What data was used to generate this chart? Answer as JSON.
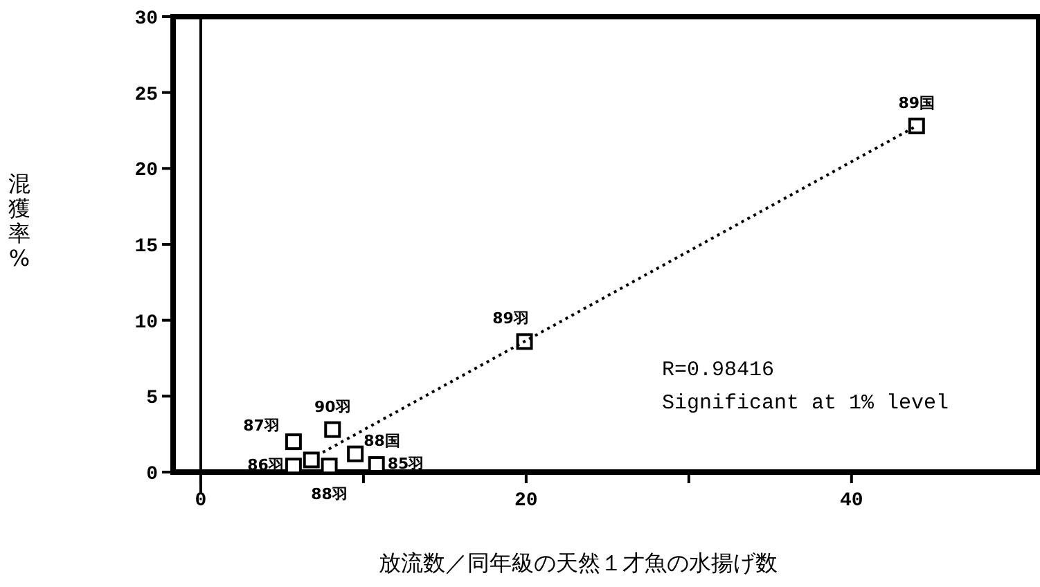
{
  "chart_data": {
    "type": "scatter",
    "xlabel": "放流数／同年級の天然１才魚の水揚げ数",
    "ylabel": "混獲率%",
    "xlim": [
      -1.7,
      51.5
    ],
    "ylim": [
      0,
      30
    ],
    "xticks": [
      0,
      {
        "value": 10,
        "label": null
      },
      20,
      {
        "value": 30,
        "label": null
      },
      40
    ],
    "yticks": [
      0,
      5,
      10,
      15,
      20,
      25,
      30
    ],
    "grid": false,
    "ref_lines": [
      {
        "axis": "x",
        "value": 0,
        "color": "#000000"
      }
    ],
    "series": [
      {
        "type": "scatter",
        "marker": "square",
        "color": "#000000",
        "x": [
          44.0,
          19.9,
          5.7,
          8.1,
          9.5,
          10.8,
          5.7,
          6.8,
          7.9
        ],
        "values": [
          22.8,
          8.6,
          2.0,
          2.8,
          1.2,
          0.5,
          0.4,
          0.8,
          0.4
        ]
      },
      {
        "type": "line",
        "line_style": "dotted",
        "marker": "none",
        "color": "#000000",
        "x": [
          7.5,
          44.0
        ],
        "values": [
          1.3,
          22.8
        ]
      }
    ],
    "annotations": [
      {
        "text": "89国",
        "x": 44.0,
        "y": 22.8
      },
      {
        "text": "89羽",
        "x": 19.9,
        "y": 8.6
      },
      {
        "text": "87羽",
        "x": 5.7,
        "y": 2.0
      },
      {
        "text": "90羽",
        "x": 8.1,
        "y": 2.8
      },
      {
        "text": "88国",
        "x": 9.5,
        "y": 1.2
      },
      {
        "text": "85羽",
        "x": 10.8,
        "y": 0.5
      },
      {
        "text": "86羽",
        "x": 5.7,
        "y": 0.4
      },
      {
        "text": "88羽",
        "x": 7.9,
        "y": 0.4
      },
      "R=0.98416",
      "Significant at 1% level"
    ]
  }
}
